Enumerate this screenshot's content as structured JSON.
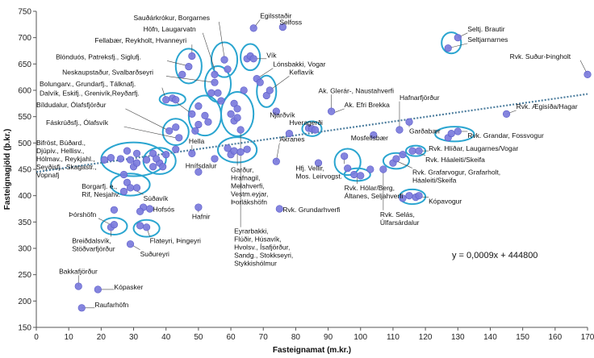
{
  "chart_data": {
    "type": "scatter",
    "title": "",
    "xlabel": "Fasteignamat (m.kr.)",
    "ylabel": "Fasteignagjöld (þ.kr.)",
    "xlim": [
      0,
      170
    ],
    "ylim": [
      150,
      750
    ],
    "xticks": [
      "0",
      "10",
      "20",
      "30",
      "40",
      "50",
      "60",
      "70",
      "80",
      "90",
      "100",
      "110",
      "120",
      "130",
      "140",
      "150",
      "160",
      "170"
    ],
    "yticks": [
      "150",
      "200",
      "250",
      "300",
      "350",
      "400",
      "450",
      "500",
      "550",
      "600",
      "650",
      "700",
      "750"
    ],
    "grid": false,
    "legend": "none",
    "colors": {
      "point": "#7b7bdc",
      "point_edge": "#5a5ac8",
      "trend": "#4f7f9f",
      "circle": "#2aa5d0"
    },
    "trendline": {
      "equation": "y = 0,0009x + 444800",
      "from": [
        0,
        445
      ],
      "to": [
        170,
        593
      ]
    },
    "points": [
      {
        "x": 13,
        "y": 228
      },
      {
        "x": 14,
        "y": 187
      },
      {
        "x": 19,
        "y": 222
      },
      {
        "x": 23,
        "y": 340
      },
      {
        "x": 24,
        "y": 345
      },
      {
        "x": 21,
        "y": 468
      },
      {
        "x": 23,
        "y": 472
      },
      {
        "x": 26,
        "y": 470
      },
      {
        "x": 28,
        "y": 485
      },
      {
        "x": 29,
        "y": 468
      },
      {
        "x": 30,
        "y": 455
      },
      {
        "x": 31,
        "y": 462
      },
      {
        "x": 31,
        "y": 480
      },
      {
        "x": 27,
        "y": 440
      },
      {
        "x": 28,
        "y": 425
      },
      {
        "x": 29,
        "y": 415
      },
      {
        "x": 27,
        "y": 408
      },
      {
        "x": 31,
        "y": 415
      },
      {
        "x": 24,
        "y": 373
      },
      {
        "x": 33,
        "y": 378
      },
      {
        "x": 32,
        "y": 370
      },
      {
        "x": 29,
        "y": 308
      },
      {
        "x": 32,
        "y": 343
      },
      {
        "x": 34,
        "y": 340
      },
      {
        "x": 35,
        "y": 375
      },
      {
        "x": 36,
        "y": 455
      },
      {
        "x": 38,
        "y": 462
      },
      {
        "x": 39,
        "y": 455
      },
      {
        "x": 36,
        "y": 480
      },
      {
        "x": 37,
        "y": 470
      },
      {
        "x": 40,
        "y": 478
      },
      {
        "x": 34,
        "y": 468
      },
      {
        "x": 41,
        "y": 523
      },
      {
        "x": 43,
        "y": 530
      },
      {
        "x": 44,
        "y": 510
      },
      {
        "x": 43,
        "y": 488
      },
      {
        "x": 40,
        "y": 582
      },
      {
        "x": 42,
        "y": 585
      },
      {
        "x": 43,
        "y": 582
      },
      {
        "x": 45,
        "y": 630
      },
      {
        "x": 47,
        "y": 645
      },
      {
        "x": 48,
        "y": 665
      },
      {
        "x": 48,
        "y": 555
      },
      {
        "x": 49,
        "y": 523
      },
      {
        "x": 50,
        "y": 535
      },
      {
        "x": 50,
        "y": 570
      },
      {
        "x": 52,
        "y": 552
      },
      {
        "x": 53,
        "y": 540
      },
      {
        "x": 54,
        "y": 595
      },
      {
        "x": 55,
        "y": 630
      },
      {
        "x": 55,
        "y": 615
      },
      {
        "x": 56,
        "y": 595
      },
      {
        "x": 57,
        "y": 580
      },
      {
        "x": 58,
        "y": 658
      },
      {
        "x": 59,
        "y": 640
      },
      {
        "x": 60,
        "y": 555
      },
      {
        "x": 61,
        "y": 575
      },
      {
        "x": 61,
        "y": 542
      },
      {
        "x": 62,
        "y": 565
      },
      {
        "x": 62,
        "y": 548
      },
      {
        "x": 63,
        "y": 525
      },
      {
        "x": 64,
        "y": 600
      },
      {
        "x": 65,
        "y": 660
      },
      {
        "x": 66,
        "y": 665
      },
      {
        "x": 67,
        "y": 718
      },
      {
        "x": 67,
        "y": 660
      },
      {
        "x": 68,
        "y": 622
      },
      {
        "x": 69,
        "y": 615
      },
      {
        "x": 71,
        "y": 590
      },
      {
        "x": 72,
        "y": 600
      },
      {
        "x": 74,
        "y": 560
      },
      {
        "x": 76,
        "y": 720
      },
      {
        "x": 78,
        "y": 518
      },
      {
        "x": 75,
        "y": 375
      },
      {
        "x": 74,
        "y": 465
      },
      {
        "x": 59,
        "y": 490
      },
      {
        "x": 60,
        "y": 478
      },
      {
        "x": 61,
        "y": 485
      },
      {
        "x": 63,
        "y": 483
      },
      {
        "x": 65,
        "y": 488
      },
      {
        "x": 48,
        "y": 480
      },
      {
        "x": 50,
        "y": 445
      },
      {
        "x": 55,
        "y": 470
      },
      {
        "x": 50,
        "y": 378
      },
      {
        "x": 84,
        "y": 528
      },
      {
        "x": 85,
        "y": 527
      },
      {
        "x": 86,
        "y": 525
      },
      {
        "x": 91,
        "y": 560
      },
      {
        "x": 87,
        "y": 462
      },
      {
        "x": 95,
        "y": 475
      },
      {
        "x": 96,
        "y": 452
      },
      {
        "x": 98,
        "y": 440
      },
      {
        "x": 100,
        "y": 438
      },
      {
        "x": 103,
        "y": 450
      },
      {
        "x": 104,
        "y": 515
      },
      {
        "x": 107,
        "y": 450
      },
      {
        "x": 110,
        "y": 462
      },
      {
        "x": 111,
        "y": 470
      },
      {
        "x": 112,
        "y": 525
      },
      {
        "x": 113,
        "y": 478
      },
      {
        "x": 115,
        "y": 540
      },
      {
        "x": 116,
        "y": 485
      },
      {
        "x": 118,
        "y": 485
      },
      {
        "x": 113,
        "y": 395
      },
      {
        "x": 115,
        "y": 400
      },
      {
        "x": 117,
        "y": 397
      },
      {
        "x": 118,
        "y": 400
      },
      {
        "x": 127,
        "y": 510
      },
      {
        "x": 128,
        "y": 518
      },
      {
        "x": 130,
        "y": 522
      },
      {
        "x": 127,
        "y": 680
      },
      {
        "x": 130,
        "y": 700
      },
      {
        "x": 145,
        "y": 555
      },
      {
        "x": 170,
        "y": 630
      }
    ],
    "highlight_groups": [
      {
        "cx": 24,
        "cy": 342,
        "rx": 4,
        "ry": 16
      },
      {
        "cx": 34,
        "cy": 338,
        "rx": 4,
        "ry": 16
      },
      {
        "cx": 29,
        "cy": 421,
        "rx": 6,
        "ry": 21
      },
      {
        "cx": 30,
        "cy": 469,
        "rx": 10,
        "ry": 32
      },
      {
        "cx": 38,
        "cy": 466,
        "rx": 5,
        "ry": 25
      },
      {
        "cx": 43,
        "cy": 521,
        "rx": 4,
        "ry": 25
      },
      {
        "cx": 42,
        "cy": 583,
        "rx": 4,
        "ry": 12
      },
      {
        "cx": 47,
        "cy": 646,
        "rx": 4,
        "ry": 33
      },
      {
        "cx": 52,
        "cy": 552,
        "rx": 5,
        "ry": 38
      },
      {
        "cx": 56,
        "cy": 612,
        "rx": 4,
        "ry": 34
      },
      {
        "cx": 58,
        "cy": 658,
        "rx": 4,
        "ry": 33
      },
      {
        "cx": 62,
        "cy": 555,
        "rx": 5,
        "ry": 42
      },
      {
        "cx": 66,
        "cy": 663,
        "rx": 3,
        "ry": 25
      },
      {
        "cx": 71,
        "cy": 598,
        "rx": 3,
        "ry": 30
      },
      {
        "cx": 62,
        "cy": 487,
        "rx": 6,
        "ry": 24
      },
      {
        "cx": 85,
        "cy": 527,
        "rx": 3,
        "ry": 14
      },
      {
        "cx": 96,
        "cy": 464,
        "rx": 4,
        "ry": 25
      },
      {
        "cx": 99,
        "cy": 440,
        "rx": 4,
        "ry": 12
      },
      {
        "cx": 111,
        "cy": 466,
        "rx": 4,
        "ry": 15
      },
      {
        "cx": 117,
        "cy": 485,
        "rx": 3,
        "ry": 10
      },
      {
        "cx": 116,
        "cy": 398,
        "rx": 4,
        "ry": 14
      },
      {
        "cx": 129,
        "cy": 517,
        "rx": 6,
        "ry": 14
      },
      {
        "cx": 128,
        "cy": 690,
        "rx": 3,
        "ry": 20
      }
    ],
    "annotations": [
      {
        "lines": [
          "Sauðárkrókur, Borgarnes"
        ],
        "x": 30,
        "y": 733,
        "tx": 58,
        "ty": 662
      },
      {
        "lines": [
          "Egilsstaðir"
        ],
        "x": 69,
        "y": 737,
        "tx": 67,
        "ty": 718
      },
      {
        "lines": [
          "Selfoss"
        ],
        "x": 75,
        "y": 725,
        "tx": 76,
        "ty": 720
      },
      {
        "lines": [
          "Höfn, Laugarvatn"
        ],
        "x": 33,
        "y": 712,
        "tx": 55,
        "ty": 640
      },
      {
        "lines": [
          "Fellabær, Reykholt, Hvanneyri"
        ],
        "x": 18,
        "y": 690,
        "tx": 48,
        "ty": 664
      },
      {
        "lines": [
          "Blönduós, Patreksfj., Siglufj."
        ],
        "x": 6,
        "y": 659,
        "tx": 47,
        "ty": 646
      },
      {
        "lines": [
          "Vík"
        ],
        "x": 71,
        "y": 662,
        "tx": 67,
        "ty": 660
      },
      {
        "lines": [
          "Lónsbakki, Vogar"
        ],
        "x": 73,
        "y": 645,
        "tx": 68,
        "ty": 622
      },
      {
        "lines": [
          "Neskaupstaður, Svalbarðseyri"
        ],
        "x": 8,
        "y": 630,
        "tx": 55,
        "ty": 615
      },
      {
        "lines": [
          "Keflavík"
        ],
        "x": 78,
        "y": 630,
        "tx": 72,
        "ty": 600
      },
      {
        "lines": [
          "Bolungarv., Grundarfj., Tálknafj."
        ],
        "x": 1,
        "y": 608,
        "tx": 40,
        "ty": 582
      },
      {
        "lines": [
          "Dalvík, Eskifj., Grenivík,Reyðarfj."
        ],
        "x": 1,
        "y": 590,
        "tx": 48,
        "ty": 555
      },
      {
        "lines": [
          "Ak. Glerár-, Naustahverfi"
        ],
        "x": 87,
        "y": 595,
        "tx": 91,
        "ty": 560
      },
      {
        "lines": [
          "Ak. Efri Brekka"
        ],
        "x": 95,
        "y": 568,
        "tx": 92,
        "ty": 558
      },
      {
        "lines": [
          "Hafnarfjörður"
        ],
        "x": 112,
        "y": 582,
        "tx": 112,
        "ty": 525
      },
      {
        "lines": [
          "Bíldudalur, Ólafsfjörður"
        ],
        "x": 0,
        "y": 568,
        "tx": 41,
        "ty": 523
      },
      {
        "lines": [
          "Njarðvík"
        ],
        "x": 72,
        "y": 549,
        "tx": 74,
        "ty": 560
      },
      {
        "lines": [
          "Rvk. Suður-Þingholt"
        ],
        "x": 146,
        "y": 660,
        "tx": 170,
        "ty": 630
      },
      {
        "lines": [
          "Seltj. Brautir"
        ],
        "x": 133,
        "y": 712,
        "tx": 130,
        "ty": 700
      },
      {
        "lines": [
          "Seltjarnarnes"
        ],
        "x": 133,
        "y": 692,
        "tx": 127,
        "ty": 680
      },
      {
        "lines": [
          "Rvk. Ægisíða/Hagar"
        ],
        "x": 148,
        "y": 565,
        "tx": 145,
        "ty": 555
      },
      {
        "lines": [
          "Garðabær"
        ],
        "x": 115,
        "y": 518,
        "tx": 115,
        "ty": 540
      },
      {
        "lines": [
          "Rvk. Grandar, Fossvogur"
        ],
        "x": 133,
        "y": 510,
        "tx": 130,
        "ty": 522
      },
      {
        "lines": [
          "Fáskrúðsfj., Ólafsvík"
        ],
        "x": 3,
        "y": 534,
        "tx": 43,
        "ty": 510
      },
      {
        "lines": [
          "Hveragerði"
        ],
        "x": 78,
        "y": 534,
        "tx": 84,
        "ty": 528
      },
      {
        "lines": [
          "Mosfellsbær"
        ],
        "x": 97,
        "y": 505,
        "tx": 104,
        "ty": 515
      },
      {
        "lines": [
          "Akranes"
        ],
        "x": 75,
        "y": 503,
        "tx": 74,
        "ty": 465
      },
      {
        "lines": [
          "Hella"
        ],
        "x": 47,
        "y": 499,
        "tx": 48,
        "ty": 480
      },
      {
        "lines": [
          "Rvk. Hlíðar, Laugarnes/Vogar"
        ],
        "x": 121,
        "y": 485,
        "tx": 118,
        "ty": 485
      },
      {
        "lines": [
          "Rvk. Háaleiti/Skeifa"
        ],
        "x": 120,
        "y": 464,
        "tx": 116,
        "ty": 485
      },
      {
        "lines": [
          "Bifröst, Búðard.,",
          "Djúpiv., Hellisv.,",
          "Hólmav., Reykjahl.,",
          "Seyðisfj., Skagastr.,",
          "Vopnafj"
        ],
        "x": 0,
        "y": 496,
        "tx": 21,
        "ty": 468
      },
      {
        "lines": [
          "Hnífsdalur"
        ],
        "x": 46,
        "y": 452,
        "tx": 50,
        "ty": 445
      },
      {
        "lines": [
          "Garður,",
          "Hrafnagil,",
          "Melahverfi,",
          "Vestm.eyjar,",
          "Þorlákshöfn"
        ],
        "x": 60,
        "y": 445,
        "tx": 62,
        "ty": 487
      },
      {
        "lines": [
          "Hfj. Vellir,",
          "Mos. Leirvogst."
        ],
        "x": 80,
        "y": 448,
        "tx": 95,
        "ty": 475
      },
      {
        "lines": [
          "Rvk. Grafarvogur, Grafarholt,",
          "Háaleiti/Skeifa"
        ],
        "x": 116,
        "y": 440,
        "tx": 111,
        "ty": 466
      },
      {
        "lines": [
          "Borgarfj. e.,",
          "Rif, Nesjahv."
        ],
        "x": 14,
        "y": 413,
        "tx": 27,
        "ty": 420
      },
      {
        "lines": [
          "Rvk. Hólar/Berg,",
          "Áltanes, Seljahverfi"
        ],
        "x": 95,
        "y": 410,
        "tx": 99,
        "ty": 440
      },
      {
        "lines": [
          "Kópavogur"
        ],
        "x": 121,
        "y": 385,
        "tx": 116,
        "ty": 398
      },
      {
        "lines": [
          "Súðavík"
        ],
        "x": 33,
        "y": 390,
        "tx": 29,
        "ty": 415
      },
      {
        "lines": [
          "Hofsós"
        ],
        "x": 36,
        "y": 370,
        "tx": 34,
        "ty": 372
      },
      {
        "lines": [
          "Hafnir"
        ],
        "x": 48,
        "y": 356,
        "tx": 50,
        "ty": 378
      },
      {
        "lines": [
          "Rvk. Grundarhverfi"
        ],
        "x": 76,
        "y": 369,
        "tx": 75,
        "ty": 375
      },
      {
        "lines": [
          "Rvk. Selás,",
          "Úlfarsárdalur"
        ],
        "x": 106,
        "y": 360,
        "tx": 107,
        "ty": 450
      },
      {
        "lines": [
          "Þórshöfn"
        ],
        "x": 10,
        "y": 360,
        "tx": 23,
        "ty": 345
      },
      {
        "lines": [
          "Breiðdalsvík,",
          "Stöðvarfjörður"
        ],
        "x": 11,
        "y": 310,
        "tx": 23,
        "ty": 340
      },
      {
        "lines": [
          "Flateyri, Þingeyri"
        ],
        "x": 35,
        "y": 310,
        "tx": 34,
        "ty": 340
      },
      {
        "lines": [
          "Suðureyri"
        ],
        "x": 32,
        "y": 285,
        "tx": 29,
        "ty": 308
      },
      {
        "lines": [
          "Eyrarbakki,",
          "Flúðir, Húsavík,",
          "Hvolsv., Ísafjörður,",
          "Sandg., Stokkseyri,",
          "Stykkishólmur"
        ],
        "x": 61,
        "y": 328,
        "tx": 63,
        "ty": 525
      },
      {
        "lines": [
          "Bakkafjörður"
        ],
        "x": 7,
        "y": 252,
        "tx": 13,
        "ty": 228
      },
      {
        "lines": [
          "Kópasker"
        ],
        "x": 24,
        "y": 222,
        "tx": 19,
        "ty": 222
      },
      {
        "lines": [
          "Raufarhöfn"
        ],
        "x": 18,
        "y": 188,
        "tx": 14,
        "ty": 187
      }
    ]
  }
}
